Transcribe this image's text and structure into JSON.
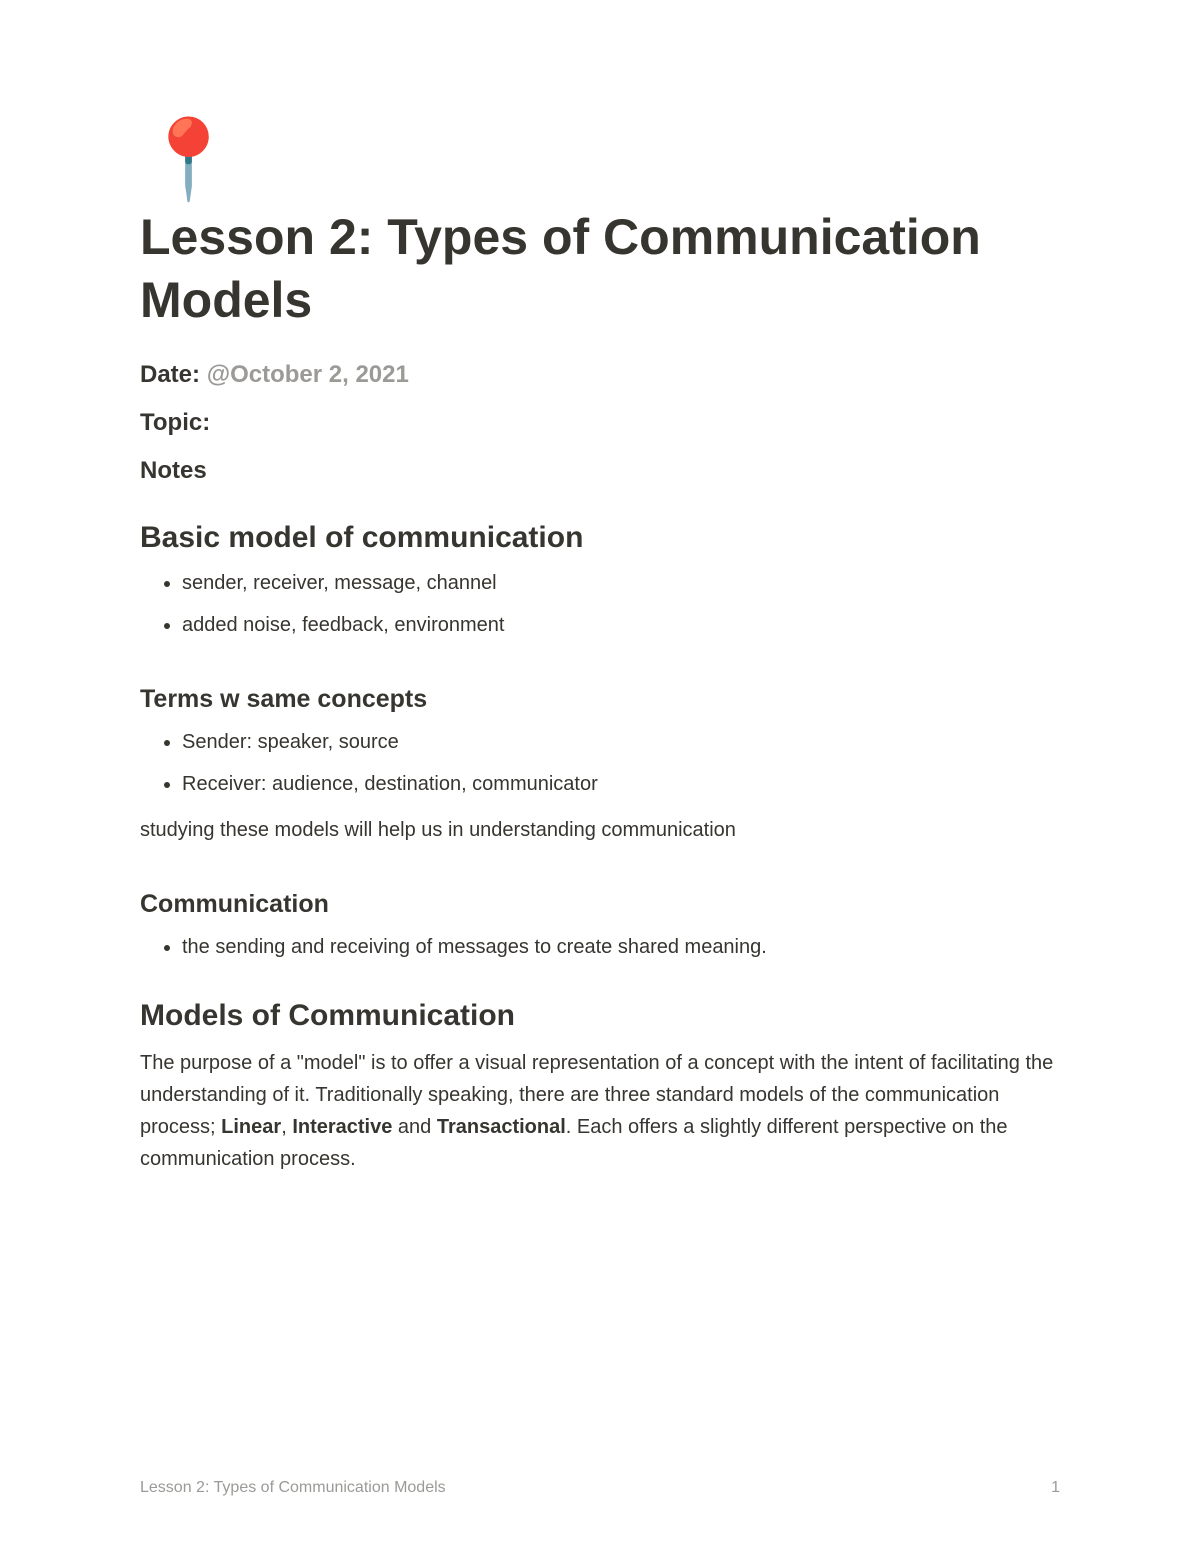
{
  "icon": "📍",
  "title": "Lesson 2: Types of Communication Models",
  "meta": {
    "date_label": "Date: ",
    "date_value": "@October 2, 2021",
    "topic_label": "Topic:",
    "notes_label": "Notes"
  },
  "sections": {
    "basic_model": {
      "heading": "Basic model of communication",
      "items": [
        "sender, receiver, message, channel",
        "added noise, feedback, environment"
      ]
    },
    "terms": {
      "heading": "Terms w same concepts",
      "items": [
        "Sender: speaker, source",
        "Receiver: audience, destination, communicator"
      ],
      "after_text": "studying these models will help us in understanding communication"
    },
    "communication": {
      "heading": "Communication",
      "items": [
        "the sending and receiving of messages to create shared meaning."
      ]
    },
    "models": {
      "heading": "Models of Communication",
      "para_pre": "The purpose of a \"model\" is to offer a visual representation of a concept with the intent of facilitating the understanding of it. Traditionally speaking, there are three standard models of the communication process; ",
      "bold1": "Linear",
      "sep1": ", ",
      "bold2": "Interactive",
      "sep2": " and ",
      "bold3": "Transactional",
      "para_post": ". Each offers a slightly different perspective on the communication process."
    }
  },
  "footer": {
    "title": "Lesson 2: Types of Communication Models",
    "page": "1"
  },
  "colors": {
    "text": "#37352f",
    "muted": "#9b9a97",
    "background": "#ffffff"
  },
  "typography": {
    "title_fontsize": 50,
    "h2_fontsize": 30,
    "h3_fontsize": 25,
    "body_fontsize": 20,
    "footer_fontsize": 16
  }
}
